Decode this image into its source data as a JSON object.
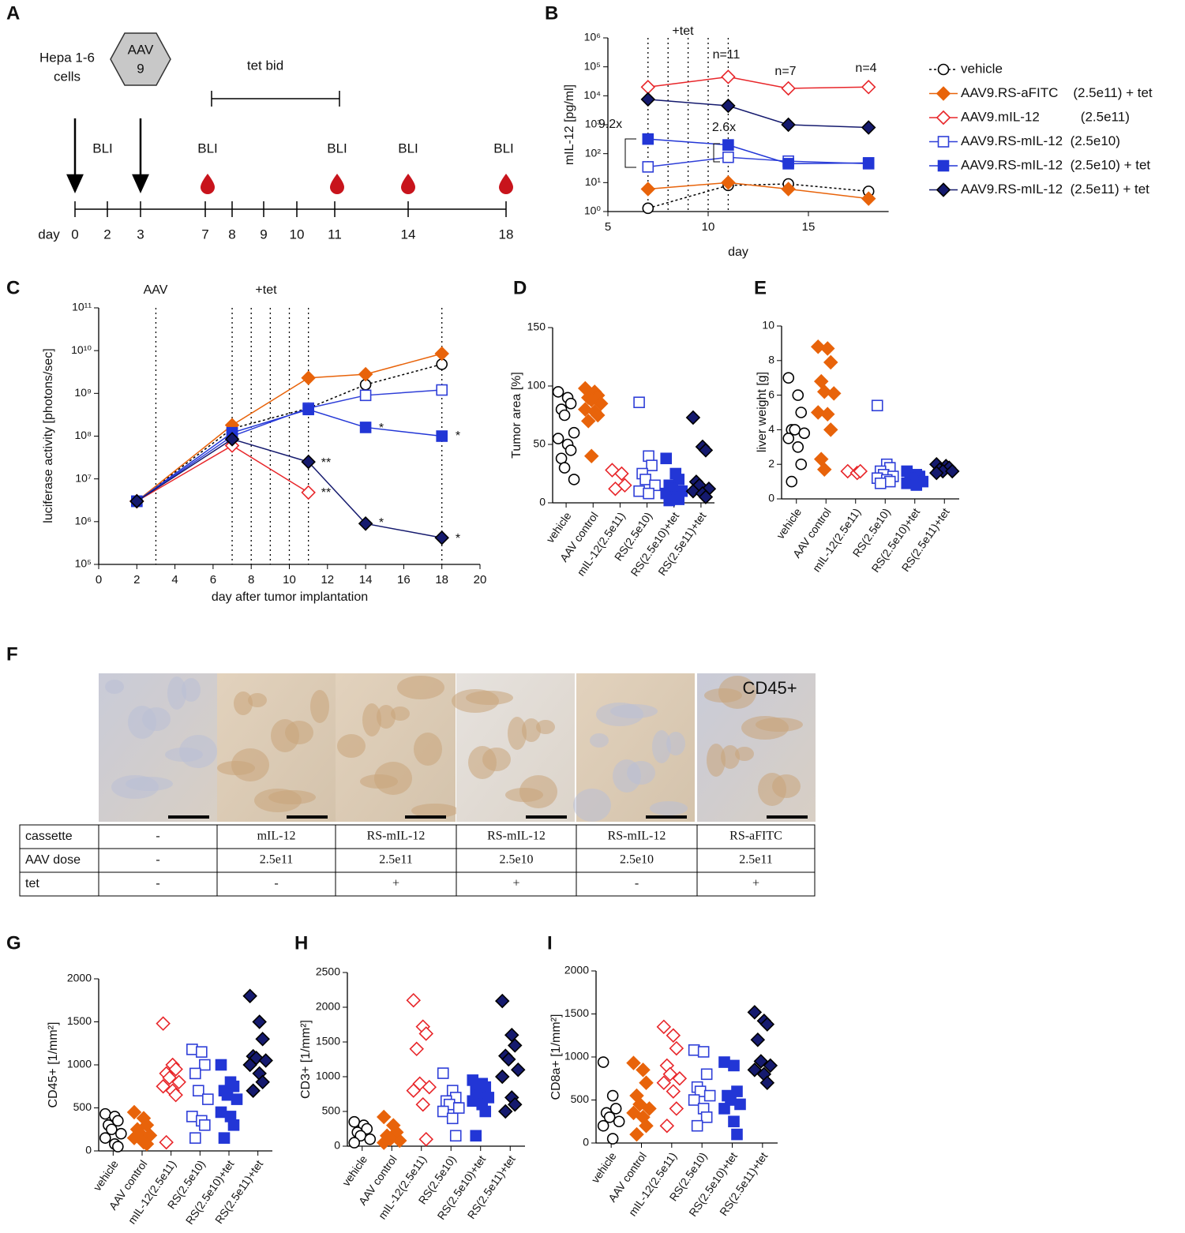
{
  "panel_a": {
    "label": "A",
    "cells_label": [
      "Hepa 1-6",
      "cells"
    ],
    "aav_label": [
      "AAV",
      "9"
    ],
    "tet_label": "tet bid",
    "bli": [
      "BLI",
      "BLI",
      "BLI",
      "BLI",
      "BLI"
    ],
    "day_label": "day",
    "days": [
      0,
      2,
      3,
      7,
      8,
      9,
      10,
      11,
      14,
      18
    ]
  },
  "panel_f": {
    "label": "F",
    "image_label": "CD45+",
    "table": {
      "rows": [
        [
          "cassette",
          "-",
          "mIL-12",
          "RS-mIL-12",
          "RS-mIL-12",
          "RS-mIL-12",
          "RS-aFITC"
        ],
        [
          "AAV dose",
          "-",
          "2.5e11",
          "2.5e11",
          "2.5e10",
          "2.5e10",
          "2.5e11"
        ],
        [
          "tet",
          "-",
          "-",
          "+",
          "+",
          "-",
          "+"
        ]
      ]
    }
  },
  "chart_data": [
    {
      "type": "line",
      "label": "B",
      "x_label": "day",
      "y_label": "mIL-12 [pg/ml]",
      "log_y": true,
      "legend": "right",
      "xlim": [
        5,
        19
      ],
      "xticks": [
        5,
        10,
        15
      ],
      "ylim": [
        1,
        1000000
      ],
      "yticks": [
        {
          "value": 1,
          "label": "10⁰"
        },
        {
          "value": 10,
          "label": "10¹"
        },
        {
          "value": 100,
          "label": "10²"
        },
        {
          "value": 1000,
          "label": "10³"
        },
        {
          "value": 10000,
          "label": "10⁴"
        },
        {
          "value": 100000,
          "label": "10⁵"
        },
        {
          "value": 1000000,
          "label": "10⁶"
        }
      ],
      "vlines": [
        7,
        8,
        9,
        10,
        11
      ],
      "annotations": [
        "+tet",
        "n=11",
        "n=7",
        "n=4",
        "9.2x",
        "2.6x"
      ],
      "x": [
        7,
        11,
        14,
        18
      ],
      "series": [
        {
          "name": "vehicle",
          "color": "#000000",
          "marker": "circle",
          "open": true,
          "dash": true,
          "values": [
            1.3,
            8,
            9,
            5
          ]
        },
        {
          "name": "AAV9.RS-aFITC    (2.5e11) + tet",
          "color": "#e8630a",
          "marker": "diamond",
          "open": false,
          "dash": false,
          "values": [
            6,
            10,
            6,
            2.8
          ]
        },
        {
          "name": "AAV9.mIL-12           (2.5e11)",
          "color": "#e8262a",
          "marker": "diamond",
          "open": true,
          "dash": false,
          "values": [
            20000,
            45000,
            18000,
            20000
          ]
        },
        {
          "name": "AAV9.RS-mIL-12  (2.5e10)",
          "color": "#2f3fd8",
          "marker": "square",
          "open": true,
          "dash": false,
          "values": [
            35,
            75,
            55,
            45
          ]
        },
        {
          "name": "AAV9.RS-mIL-12  (2.5e10) + tet",
          "color": "#2236d6",
          "marker": "square",
          "open": false,
          "dash": false,
          "values": [
            320,
            200,
            45,
            48
          ]
        },
        {
          "name": "AAV9.RS-mIL-12  (2.5e11) + tet",
          "color": "#151a6e",
          "marker": "diamond",
          "open": false,
          "dash": false,
          "values": [
            7500,
            4500,
            1000,
            800
          ]
        }
      ]
    },
    {
      "type": "line",
      "label": "C",
      "x_label": "day after tumor implantation",
      "y_label": "luciferase activity [photons/sec]",
      "log_y": true,
      "xlim": [
        0,
        20
      ],
      "xticks": [
        0,
        2,
        4,
        6,
        8,
        10,
        12,
        14,
        16,
        18,
        20
      ],
      "ylim": [
        100000,
        100000000000
      ],
      "yticks": [
        {
          "value": 100000,
          "label": "10⁵"
        },
        {
          "value": 1000000,
          "label": "10⁶"
        },
        {
          "value": 10000000,
          "label": "10⁷"
        },
        {
          "value": 100000000,
          "label": "10⁸"
        },
        {
          "value": 1000000000,
          "label": "10⁹"
        },
        {
          "value": 10000000000,
          "label": "10¹⁰"
        },
        {
          "value": 100000000000,
          "label": "10¹¹"
        }
      ],
      "vlines": [
        3,
        7,
        8,
        9,
        10,
        11,
        18
      ],
      "annotations": [
        "AAV",
        "+tet",
        "**",
        "**",
        "*",
        "*",
        "*",
        "*"
      ],
      "x": [
        2,
        7,
        11,
        14,
        18
      ],
      "series": [
        {
          "color": "#000000",
          "marker": "circle",
          "open": true,
          "dash": true,
          "values": [
            3000000,
            150000000,
            450000000,
            1600000000,
            4800000000
          ]
        },
        {
          "color": "#e8630a",
          "marker": "diamond",
          "open": false,
          "dash": false,
          "values": [
            3000000,
            180000000,
            2300000000,
            2800000000,
            8500000000
          ]
        },
        {
          "color": "#e8262a",
          "marker": "diamond",
          "open": true,
          "dash": false,
          "values": [
            3000000,
            60000000,
            4800000,
            null,
            null
          ]
        },
        {
          "color": "#2f3fd8",
          "marker": "square",
          "open": true,
          "dash": false,
          "values": [
            3000000,
            100000000,
            450000000,
            900000000,
            1200000000
          ]
        },
        {
          "color": "#2236d6",
          "marker": "square",
          "open": false,
          "dash": false,
          "values": [
            3000000,
            120000000,
            420000000,
            160000000,
            100000000
          ]
        },
        {
          "color": "#151a6e",
          "marker": "diamond",
          "open": false,
          "dash": false,
          "values": [
            3000000,
            85000000,
            25000000,
            900000,
            420000
          ]
        }
      ]
    },
    {
      "type": "dot",
      "label": "D",
      "y_label": "Tumor area [%]",
      "ylim": [
        0,
        150
      ],
      "yticks": [
        0,
        50,
        100,
        150
      ],
      "categories": [
        "vehicle",
        "AAV control",
        "mIL-12(2.5e11)",
        "RS(2.5e10)",
        "RS(2.5e10)+tet",
        "RS(2.5e11)+tet"
      ],
      "colors": [
        "#000000",
        "#e8630a",
        "#e8262a",
        "#2f3fd8",
        "#2236d6",
        "#151a6e"
      ],
      "markers": [
        "circle",
        "diamond",
        "diamond",
        "square",
        "square",
        "diamond"
      ],
      "open": [
        true,
        false,
        true,
        true,
        false,
        false
      ],
      "values": [
        [
          95,
          90,
          85,
          80,
          75,
          60,
          55,
          50,
          45,
          38,
          30,
          20
        ],
        [
          98,
          95,
          92,
          90,
          88,
          85,
          80,
          78,
          75,
          70,
          40
        ],
        [
          28,
          25,
          15,
          12
        ],
        [
          86,
          40,
          32,
          25,
          20,
          15,
          10,
          8
        ],
        [
          38,
          25,
          20,
          15,
          12,
          10,
          8,
          5,
          3,
          2
        ],
        [
          73,
          48,
          45,
          18,
          15,
          12,
          10,
          8,
          5
        ]
      ]
    },
    {
      "type": "dot",
      "label": "E",
      "y_label": "liver weight [g]",
      "ylim": [
        0,
        10
      ],
      "yticks": [
        0,
        2,
        4,
        6,
        8,
        10
      ],
      "categories": [
        "vehicle",
        "AAV control",
        "mIL-12(2.5e11)",
        "RS(2.5e10)",
        "RS(2.5e10)+tet",
        "RS(2.5e11)+tet"
      ],
      "colors": [
        "#000000",
        "#e8630a",
        "#e8262a",
        "#2f3fd8",
        "#2236d6",
        "#151a6e"
      ],
      "markers": [
        "circle",
        "diamond",
        "diamond",
        "square",
        "square",
        "diamond"
      ],
      "open": [
        true,
        false,
        true,
        true,
        false,
        false
      ],
      "values": [
        [
          7,
          6,
          5,
          4,
          4,
          3.8,
          3.5,
          3,
          2,
          1
        ],
        [
          8.8,
          8.7,
          7.9,
          6.8,
          6.2,
          6.1,
          5,
          4.9,
          4,
          2.3,
          1.7
        ],
        [
          1.6,
          1.5,
          1.6
        ],
        [
          5.4,
          2,
          1.8,
          1.6,
          1.4,
          1.3,
          1.2,
          1.1,
          1,
          0.9
        ],
        [
          1.6,
          1.4,
          1.3,
          1.2,
          1.1,
          1,
          0.9,
          0.8
        ],
        [
          2,
          1.9,
          1.8,
          1.7,
          1.6,
          1.6,
          1.5
        ]
      ]
    },
    {
      "type": "dot",
      "label": "G",
      "y_label": "CD45+ [1/mm²]",
      "ylim": [
        0,
        2000
      ],
      "yticks": [
        0,
        500,
        1000,
        1500,
        2000
      ],
      "categories": [
        "vehicle",
        "AAV control",
        "mIL-12(2.5e11)",
        "RS(2.5e10)",
        "RS(2.5e10)+tet",
        "RS(2.5e11)+tet"
      ],
      "colors": [
        "#000000",
        "#e8630a",
        "#e8262a",
        "#2f3fd8",
        "#2236d6",
        "#151a6e"
      ],
      "markers": [
        "circle",
        "diamond",
        "diamond",
        "square",
        "square",
        "diamond"
      ],
      "open": [
        true,
        false,
        true,
        true,
        false,
        false
      ],
      "values": [
        [
          430,
          400,
          350,
          300,
          250,
          200,
          150,
          80,
          50
        ],
        [
          450,
          380,
          300,
          250,
          200,
          180,
          150,
          100,
          80
        ],
        [
          1480,
          1000,
          950,
          900,
          850,
          800,
          750,
          700,
          650,
          100
        ],
        [
          1180,
          1150,
          1000,
          900,
          700,
          600,
          400,
          350,
          300,
          150
        ],
        [
          1000,
          800,
          750,
          700,
          650,
          600,
          450,
          400,
          300,
          150
        ],
        [
          1800,
          1500,
          1300,
          1100,
          1080,
          1050,
          1000,
          900,
          800,
          700
        ]
      ]
    },
    {
      "type": "dot",
      "label": "H",
      "y_label": "CD3+ [1/mm²]",
      "ylim": [
        0,
        2500
      ],
      "yticks": [
        0,
        500,
        1000,
        1500,
        2000,
        2500
      ],
      "categories": [
        "vehicle",
        "AAV control",
        "mIL-12(2.5e11)",
        "RS(2.5e10)",
        "RS(2.5e10)+tet",
        "RS(2.5e11)+tet"
      ],
      "colors": [
        "#000000",
        "#e8630a",
        "#e8262a",
        "#2f3fd8",
        "#2236d6",
        "#151a6e"
      ],
      "markers": [
        "circle",
        "diamond",
        "diamond",
        "square",
        "square",
        "diamond"
      ],
      "open": [
        true,
        false,
        true,
        true,
        false,
        false
      ],
      "values": [
        [
          350,
          300,
          250,
          200,
          150,
          100,
          50
        ],
        [
          420,
          300,
          200,
          150,
          100,
          80,
          50
        ],
        [
          2100,
          1720,
          1620,
          1400,
          900,
          850,
          800,
          600,
          100
        ],
        [
          1050,
          800,
          700,
          650,
          600,
          550,
          500,
          400,
          150
        ],
        [
          950,
          900,
          850,
          800,
          750,
          700,
          650,
          600,
          500,
          150
        ],
        [
          2090,
          1600,
          1450,
          1300,
          1250,
          1100,
          1000,
          700,
          600,
          500
        ]
      ]
    },
    {
      "type": "dot",
      "label": "I",
      "y_label": "CD8a+ [1/mm²]",
      "ylim": [
        0,
        2000
      ],
      "yticks": [
        0,
        500,
        1000,
        1500,
        2000
      ],
      "categories": [
        "vehicle",
        "AAV control",
        "mIL-12(2.5e11)",
        "RS(2.5e10)",
        "RS(2.5e10)+tet",
        "RS(2.5e11)+tet"
      ],
      "colors": [
        "#000000",
        "#e8630a",
        "#e8262a",
        "#2f3fd8",
        "#2236d6",
        "#151a6e"
      ],
      "markers": [
        "circle",
        "diamond",
        "diamond",
        "square",
        "square",
        "diamond"
      ],
      "open": [
        true,
        false,
        true,
        true,
        false,
        false
      ],
      "values": [
        [
          940,
          550,
          400,
          350,
          300,
          250,
          200,
          50
        ],
        [
          930,
          850,
          700,
          550,
          450,
          400,
          350,
          300,
          200,
          100
        ],
        [
          1350,
          1250,
          1100,
          900,
          800,
          750,
          700,
          600,
          400,
          200
        ],
        [
          1080,
          1060,
          800,
          650,
          600,
          550,
          500,
          400,
          300,
          200
        ],
        [
          940,
          900,
          600,
          550,
          500,
          450,
          400,
          250,
          100
        ],
        [
          1520,
          1420,
          1380,
          1200,
          950,
          900,
          850,
          800,
          700
        ]
      ]
    }
  ]
}
